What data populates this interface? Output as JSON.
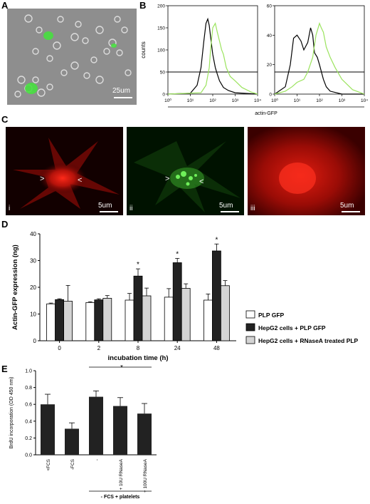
{
  "panels": {
    "A": {
      "label": "A",
      "scale": "25um"
    },
    "B": {
      "label": "B",
      "ylabel": "counts",
      "xlabel": "actin-GFP"
    },
    "C": {
      "label": "C",
      "sub": [
        "i",
        "ii",
        "iii"
      ],
      "scales": [
        "5um",
        "5um",
        "5um"
      ]
    },
    "D": {
      "label": "D"
    },
    "E": {
      "label": "E"
    }
  },
  "chart_data": [
    {
      "id": "B-left",
      "type": "line",
      "xscale": "log",
      "xlim": [
        1,
        10000
      ],
      "ylim": [
        0,
        200
      ],
      "xticks": [
        "10⁰",
        "10¹",
        "10²",
        "10³",
        "10⁴"
      ],
      "yticks": [
        0,
        50,
        100,
        150,
        200
      ],
      "gate_level": 50,
      "series": [
        {
          "color": "#000000",
          "x": [
            1,
            10,
            20,
            30,
            40,
            50,
            60,
            70,
            80,
            100,
            130,
            160,
            200,
            300,
            500,
            1000,
            10000
          ],
          "y": [
            0,
            2,
            20,
            60,
            120,
            160,
            170,
            155,
            130,
            90,
            60,
            45,
            30,
            15,
            8,
            3,
            0
          ]
        },
        {
          "color": "#9be35e",
          "x": [
            1,
            30,
            50,
            70,
            80,
            100,
            130,
            160,
            200,
            250,
            300,
            400,
            600,
            1000,
            2000,
            5000,
            10000
          ],
          "y": [
            0,
            3,
            20,
            60,
            100,
            150,
            160,
            140,
            120,
            100,
            90,
            60,
            40,
            30,
            15,
            5,
            0
          ]
        }
      ]
    },
    {
      "id": "B-right",
      "type": "line",
      "xscale": "log",
      "xlim": [
        1,
        10000
      ],
      "ylim": [
        0,
        60
      ],
      "xticks": [
        "10⁰",
        "10¹",
        "10²",
        "10³",
        "10⁴"
      ],
      "yticks": [
        0,
        20,
        40,
        60
      ],
      "gate_level": 15,
      "series": [
        {
          "color": "#000000",
          "x": [
            1,
            3,
            5,
            7,
            10,
            15,
            20,
            30,
            40,
            50,
            60,
            80,
            100,
            150,
            200,
            300,
            1000,
            10000
          ],
          "y": [
            0,
            5,
            20,
            38,
            40,
            36,
            30,
            35,
            45,
            40,
            28,
            25,
            20,
            10,
            5,
            2,
            0,
            0
          ]
        },
        {
          "color": "#9be35e",
          "x": [
            1,
            3,
            6,
            10,
            20,
            30,
            50,
            70,
            100,
            120,
            150,
            200,
            300,
            500,
            1000,
            3000,
            10000
          ],
          "y": [
            0,
            2,
            5,
            8,
            10,
            15,
            25,
            40,
            48,
            45,
            42,
            32,
            25,
            18,
            10,
            3,
            0
          ]
        }
      ]
    },
    {
      "id": "D",
      "type": "bar",
      "xlabel": "incubation time (h)",
      "ylabel": "Actin-GFP expression (ng)",
      "ylim": [
        0,
        40
      ],
      "yticks": [
        0,
        10,
        20,
        30,
        40
      ],
      "categories": [
        "0",
        "2",
        "8",
        "24",
        "48"
      ],
      "significance": [
        "",
        "",
        "*",
        "*",
        "*"
      ],
      "series": [
        {
          "name": "PLP GFP",
          "color": "#ffffff",
          "values": [
            13.8,
            14.3,
            15.2,
            16.3,
            15.2
          ],
          "errors": [
            0.3,
            0.3,
            2.5,
            3.2,
            2.3
          ]
        },
        {
          "name": "HepG2 cells + PLP GFP",
          "color": "#222222",
          "values": [
            15.4,
            15.3,
            24.2,
            29.2,
            33.6
          ],
          "errors": [
            0.3,
            0.4,
            2.7,
            1.6,
            2.6
          ]
        },
        {
          "name": "HepG2 cells + RNaseA treated PLP",
          "color": "#d4d4d4",
          "values": [
            14.8,
            15.9,
            16.8,
            19.6,
            20.6
          ],
          "errors": [
            5.9,
            1.0,
            2.9,
            1.7,
            1.9
          ]
        }
      ]
    },
    {
      "id": "E",
      "type": "bar",
      "ylabel": "BrdU incorporation (OD 450 nm)",
      "ylim": [
        0,
        1.0
      ],
      "yticks": [
        "0.0",
        "0.2",
        "0.4",
        "0.6",
        "0.8",
        "1.0"
      ],
      "categories": [
        "+FCS",
        "-FCS",
        "-",
        "+ 10U RNaseA",
        "+ 100U RNaseA"
      ],
      "values": [
        0.6,
        0.31,
        0.69,
        0.58,
        0.49
      ],
      "errors": [
        0.12,
        0.07,
        0.07,
        0.1,
        0.12
      ],
      "bracket_label": "- FCS + platelets",
      "significance_label": "*"
    }
  ]
}
